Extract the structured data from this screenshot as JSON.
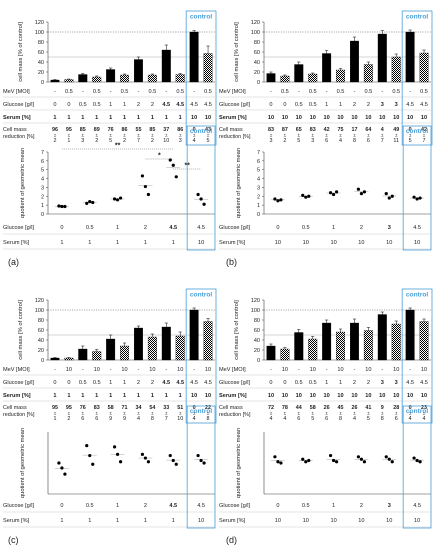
{
  "labels": {
    "cell_mass": "cell mass [% of control]",
    "quotient": "quotient of geometric mean",
    "mev_row": "MeV [MOI]",
    "glucose_row": "Glucose [g/l]",
    "serum_row": "Serum [%]",
    "reduction_row_1": "Cell mass",
    "reduction_row_2": "reduction [%]",
    "control": "control",
    "pm": "±"
  },
  "colors": {
    "control_box": "#4a9fd8",
    "bar_solid": "#000000",
    "error_bar": "#000000",
    "reference_line": "#555555",
    "grid_text": "#222222"
  },
  "chart_data": [
    {
      "panel": "(a)",
      "type": "bar",
      "ylabel": "cell mass [% of control]",
      "ylim": [
        0,
        120
      ],
      "yticks": [
        0,
        20,
        40,
        60,
        80,
        100,
        120
      ],
      "reference_lines": [
        100,
        50
      ],
      "mev": [
        "-",
        "0.5",
        "-",
        "0.5",
        "-",
        "0.5",
        "-",
        "0.5",
        "-",
        "0.5",
        "-",
        "0.5"
      ],
      "glucose": [
        "0",
        "0",
        "0.5",
        "0.5",
        "1",
        "1",
        "2",
        "2",
        "4.5",
        "4.5",
        "4.5",
        "4.5"
      ],
      "serum": [
        "1",
        "1",
        "1",
        "1",
        "1",
        "1",
        "1",
        "1",
        "1",
        "1",
        "10",
        "10"
      ],
      "reduction": [
        [
          "96",
          "2"
        ],
        [
          "95",
          "1"
        ],
        [
          "85",
          "3"
        ],
        [
          "89",
          "2"
        ],
        [
          "76",
          "5"
        ],
        [
          "86",
          "2"
        ],
        [
          "55",
          "7"
        ],
        [
          "85",
          "2"
        ],
        [
          "37",
          "10"
        ],
        [
          "86",
          "3"
        ],
        [
          "0",
          "4"
        ],
        [
          "43",
          "5"
        ]
      ],
      "series": [
        {
          "pattern": "solid",
          "values": [
            4,
            15,
            25,
            45,
            64,
            100
          ],
          "errors": [
            1,
            2,
            3,
            5,
            10,
            3
          ]
        },
        {
          "pattern": "checkered",
          "values": [
            5,
            10,
            14,
            14,
            15,
            57
          ],
          "errors": [
            1,
            2,
            2,
            2,
            2,
            15
          ]
        }
      ]
    },
    {
      "panel": "(b)",
      "type": "bar",
      "ylabel": "cell mass [% of control]",
      "ylim": [
        0,
        120
      ],
      "yticks": [
        0,
        20,
        40,
        60,
        80,
        100,
        120
      ],
      "reference_lines": [
        100,
        50
      ],
      "mev": [
        "-",
        "0.5",
        "-",
        "0.5",
        "-",
        "0.5",
        "-",
        "0.5",
        "-",
        "0.5",
        "-",
        "0.5"
      ],
      "glucose": [
        "0",
        "0",
        "0.5",
        "0.5",
        "1",
        "1",
        "2",
        "2",
        "3",
        "3",
        "4.5",
        "4.5"
      ],
      "serum": [
        "10",
        "10",
        "10",
        "10",
        "10",
        "10",
        "10",
        "10",
        "10",
        "10",
        "10",
        "10"
      ],
      "reduction": [
        [
          "83",
          "3"
        ],
        [
          "87",
          "2"
        ],
        [
          "65",
          "5"
        ],
        [
          "83",
          "3"
        ],
        [
          "42",
          "6"
        ],
        [
          "75",
          "4"
        ],
        [
          "17",
          "8"
        ],
        [
          "64",
          "6"
        ],
        [
          "4",
          "7"
        ],
        [
          "49",
          "11"
        ],
        [
          "0",
          "5"
        ],
        [
          "42",
          "7"
        ]
      ],
      "series": [
        {
          "pattern": "solid",
          "values": [
            17,
            35,
            57,
            82,
            96,
            100
          ],
          "errors": [
            3,
            5,
            6,
            8,
            7,
            4
          ]
        },
        {
          "pattern": "checkered",
          "values": [
            12,
            16,
            24,
            35,
            50,
            58
          ],
          "errors": [
            2,
            2,
            3,
            5,
            6,
            6
          ]
        }
      ]
    },
    {
      "panel": "(c)",
      "type": "bar",
      "ylabel": "cell mass [% of control]",
      "ylim": [
        0,
        120
      ],
      "yticks": [
        0,
        20,
        40,
        60,
        80,
        100,
        120
      ],
      "reference_lines": [
        100,
        50
      ],
      "mev": [
        "-",
        "10",
        "-",
        "10",
        "-",
        "10",
        "-",
        "10",
        "-",
        "10",
        "-",
        "10"
      ],
      "glucose": [
        "0",
        "0",
        "0.5",
        "0.5",
        "1",
        "1",
        "2",
        "2",
        "4.5",
        "4.5",
        "4.5",
        "4.5"
      ],
      "serum": [
        "1",
        "1",
        "1",
        "1",
        "1",
        "1",
        "1",
        "1",
        "1",
        "1",
        "10",
        "10"
      ],
      "reduction": [
        [
          "95",
          "1"
        ],
        [
          "95",
          "2"
        ],
        [
          "76",
          "6"
        ],
        [
          "83",
          "6"
        ],
        [
          "58",
          "9"
        ],
        [
          "71",
          "9"
        ],
        [
          "34",
          "4"
        ],
        [
          "54",
          "8"
        ],
        [
          "33",
          "7"
        ],
        [
          "51",
          "10"
        ],
        [
          "0",
          "4"
        ],
        [
          "22",
          "8"
        ]
      ],
      "series": [
        {
          "pattern": "solid",
          "values": [
            4,
            22,
            42,
            64,
            66,
            100
          ],
          "errors": [
            1,
            6,
            8,
            4,
            8,
            4
          ]
        },
        {
          "pattern": "checkered",
          "values": [
            4,
            17,
            28,
            46,
            48,
            77
          ],
          "errors": [
            1,
            4,
            6,
            6,
            8,
            6
          ]
        }
      ]
    },
    {
      "panel": "(d)",
      "type": "bar",
      "ylabel": "cell mass [% of control]",
      "ylim": [
        0,
        120
      ],
      "yticks": [
        0,
        20,
        40,
        60,
        80,
        100,
        120
      ],
      "reference_lines": [
        100,
        50
      ],
      "mev": [
        "-",
        "10",
        "-",
        "10",
        "-",
        "10",
        "-",
        "10",
        "-",
        "10",
        "-",
        "10"
      ],
      "glucose": [
        "0",
        "0",
        "0.5",
        "0.5",
        "1",
        "1",
        "2",
        "2",
        "3",
        "3",
        "4.5",
        "4.5"
      ],
      "serum": [
        "10",
        "10",
        "10",
        "10",
        "10",
        "10",
        "10",
        "10",
        "10",
        "10",
        "10",
        "10"
      ],
      "reduction": [
        [
          "72",
          "4"
        ],
        [
          "78",
          "4"
        ],
        [
          "44",
          "6"
        ],
        [
          "58",
          "5"
        ],
        [
          "26",
          "6"
        ],
        [
          "45",
          "8"
        ],
        [
          "26",
          "4"
        ],
        [
          "41",
          "5"
        ],
        [
          "9",
          "8"
        ],
        [
          "28",
          "6"
        ],
        [
          "0",
          "4"
        ],
        [
          "23",
          "4"
        ]
      ],
      "series": [
        {
          "pattern": "solid",
          "values": [
            28,
            55,
            74,
            74,
            91,
            100
          ],
          "errors": [
            4,
            6,
            6,
            8,
            5,
            4
          ]
        },
        {
          "pattern": "checkered",
          "values": [
            22,
            42,
            56,
            59,
            72,
            77
          ],
          "errors": [
            3,
            5,
            6,
            6,
            6,
            5
          ]
        }
      ]
    },
    {
      "panel": "(a)",
      "type": "scatter",
      "ylabel": "quotient of geometric mean",
      "ylim": [
        0,
        7
      ],
      "yticks": [
        0,
        1,
        2,
        3,
        4,
        5,
        6,
        7
      ],
      "glucose": [
        "0",
        "0.5",
        "1",
        "2",
        "4.5",
        "4.5"
      ],
      "serum": [
        "1",
        "1",
        "1",
        "1",
        "1",
        "10"
      ],
      "points": [
        [
          0.9,
          0.85,
          0.85
        ],
        [
          1.2,
          1.4,
          1.3
        ],
        [
          1.7,
          1.6,
          1.8
        ],
        [
          4.3,
          3.1,
          2.2
        ],
        [
          6.1,
          5.5,
          4.2
        ],
        [
          2.2,
          1.7,
          1.1
        ]
      ],
      "significance": [
        {
          "label": "**",
          "from": 0,
          "to": 4
        },
        {
          "label": "*",
          "from": 3,
          "to": 4
        },
        {
          "label": "**",
          "from": 4,
          "to": 5
        }
      ]
    },
    {
      "panel": "(b)",
      "type": "scatter",
      "ylabel": "quotient of geometric mean",
      "ylim": [
        0,
        7
      ],
      "yticks": [
        0,
        1,
        2,
        3,
        4,
        5,
        6,
        7
      ],
      "glucose": [
        "0",
        "0.5",
        "1",
        "2",
        "3",
        "4.5"
      ],
      "serum": [
        "10",
        "10",
        "10",
        "10",
        "10",
        "10"
      ],
      "points": [
        [
          1.7,
          1.5,
          1.6
        ],
        [
          2.1,
          1.9,
          2.0
        ],
        [
          2.4,
          2.2,
          2.5
        ],
        [
          2.8,
          2.3,
          2.5
        ],
        [
          2.3,
          1.8,
          2.0
        ],
        [
          1.9,
          1.7,
          1.8
        ]
      ],
      "significance": []
    },
    {
      "panel": "(c)",
      "type": "scatter",
      "ylabel": "quotient of geometric mean",
      "ylim": [
        0,
        2.5
      ],
      "yticks": [],
      "glucose": [
        "0",
        "0.5",
        "1",
        "2",
        "4.5",
        "4.5"
      ],
      "serum": [
        "1",
        "1",
        "1",
        "1",
        "1",
        "10"
      ],
      "points": [
        [
          1.25,
          1.05,
          0.8
        ],
        [
          1.95,
          1.55,
          1.2
        ],
        [
          1.9,
          1.6,
          1.3
        ],
        [
          1.6,
          1.45,
          1.3
        ],
        [
          1.55,
          1.35,
          1.2
        ],
        [
          1.55,
          1.35,
          1.25
        ]
      ],
      "significance": []
    },
    {
      "panel": "(d)",
      "type": "scatter",
      "ylabel": "quotient of geometric mean",
      "ylim": [
        0,
        2.5
      ],
      "yticks": [],
      "glucose": [
        "0",
        "0.5",
        "1",
        "2",
        "3",
        "4.5"
      ],
      "serum": [
        "10",
        "10",
        "10",
        "10",
        "10",
        "10"
      ],
      "points": [
        [
          1.5,
          1.3,
          1.25
        ],
        [
          1.4,
          1.3,
          1.35
        ],
        [
          1.55,
          1.35,
          1.3
        ],
        [
          1.5,
          1.4,
          1.3
        ],
        [
          1.5,
          1.4,
          1.3
        ],
        [
          1.45,
          1.35,
          1.3
        ]
      ],
      "significance": []
    }
  ]
}
